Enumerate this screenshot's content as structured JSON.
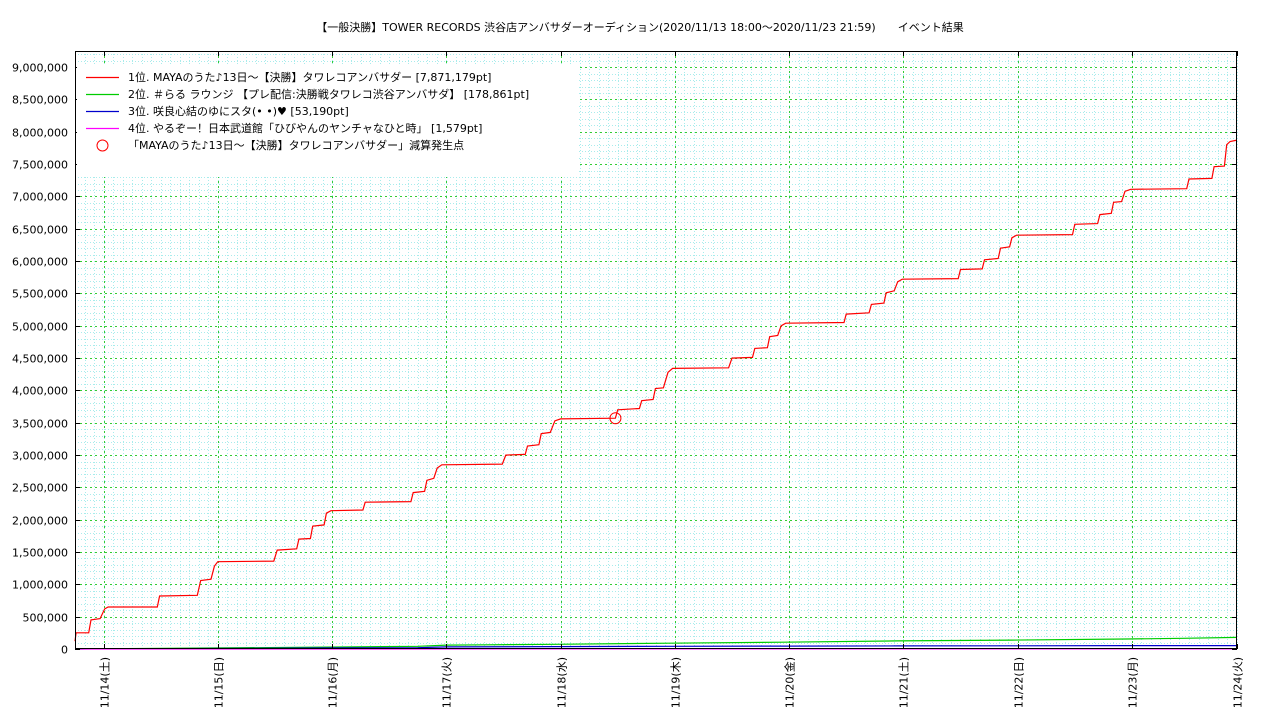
{
  "chart_data": {
    "type": "line",
    "title": "【一般決勝】TOWER RECORDS 渋谷店アンバサダーオーディション(2020/11/13 18:00〜2020/11/23 21:59)　　イベント結果",
    "xlabel": "",
    "ylabel": "",
    "x_unit": "days since 11/13 18:00",
    "xlim": [
      0,
      10.17
    ],
    "ylim": [
      0,
      9250000
    ],
    "yticks": [
      0,
      500000,
      1000000,
      1500000,
      2000000,
      2500000,
      3000000,
      3500000,
      4000000,
      4500000,
      5000000,
      5500000,
      6000000,
      6500000,
      7000000,
      7500000,
      8000000,
      8500000,
      9000000
    ],
    "ytick_labels": [
      "0",
      "500,000",
      "1,000,000",
      "1,500,000",
      "2,000,000",
      "2,500,000",
      "3,000,000",
      "3,500,000",
      "4,000,000",
      "4,500,000",
      "5,000,000",
      "5,500,000",
      "6,000,000",
      "6,500,000",
      "7,000,000",
      "7,500,000",
      "8,000,000",
      "8,500,000",
      "9,000,000"
    ],
    "xticks": [
      0.25,
      1.25,
      2.25,
      3.25,
      4.25,
      5.25,
      6.25,
      7.25,
      8.25,
      9.25,
      10.25
    ],
    "xtick_labels": [
      "11/14(土)",
      "11/15(日)",
      "11/16(月)",
      "11/17(火)",
      "11/18(水)",
      "11/19(木)",
      "11/20(金)",
      "11/21(土)",
      "11/22(日)",
      "11/23(月)",
      "11/24(火)"
    ],
    "grid": true,
    "legend_position": "top-left",
    "series": [
      {
        "name": "1位. MAYAのうた♪13日〜【決勝】タワレコアンバサダー [7,871,179pt]",
        "color": "#ff0000",
        "points": [
          [
            0,
            120000
          ],
          [
            0.01,
            250000
          ],
          [
            0.12,
            250000
          ],
          [
            0.14,
            450000
          ],
          [
            0.22,
            470000
          ],
          [
            0.26,
            620000
          ],
          [
            0.29,
            650000
          ],
          [
            0.72,
            650000
          ],
          [
            0.74,
            820000
          ],
          [
            1.07,
            830000
          ],
          [
            1.1,
            1060000
          ],
          [
            1.19,
            1080000
          ],
          [
            1.22,
            1280000
          ],
          [
            1.25,
            1350000
          ],
          [
            1.74,
            1360000
          ],
          [
            1.77,
            1530000
          ],
          [
            1.94,
            1550000
          ],
          [
            1.96,
            1700000
          ],
          [
            2.06,
            1710000
          ],
          [
            2.08,
            1900000
          ],
          [
            2.18,
            1920000
          ],
          [
            2.2,
            2100000
          ],
          [
            2.24,
            2140000
          ],
          [
            2.52,
            2150000
          ],
          [
            2.54,
            2270000
          ],
          [
            2.94,
            2280000
          ],
          [
            2.96,
            2420000
          ],
          [
            3.06,
            2440000
          ],
          [
            3.08,
            2610000
          ],
          [
            3.14,
            2640000
          ],
          [
            3.17,
            2800000
          ],
          [
            3.21,
            2850000
          ],
          [
            3.74,
            2860000
          ],
          [
            3.77,
            3000000
          ],
          [
            3.94,
            3010000
          ],
          [
            3.96,
            3140000
          ],
          [
            4.06,
            3160000
          ],
          [
            4.08,
            3330000
          ],
          [
            4.16,
            3350000
          ],
          [
            4.2,
            3530000
          ],
          [
            4.25,
            3560000
          ],
          [
            4.73,
            3570000
          ],
          [
            4.75,
            3700000
          ],
          [
            4.94,
            3720000
          ],
          [
            4.96,
            3840000
          ],
          [
            5.06,
            3860000
          ],
          [
            5.08,
            4030000
          ],
          [
            5.15,
            4040000
          ],
          [
            5.19,
            4280000
          ],
          [
            5.23,
            4340000
          ],
          [
            5.72,
            4350000
          ],
          [
            5.75,
            4500000
          ],
          [
            5.93,
            4510000
          ],
          [
            5.95,
            4650000
          ],
          [
            6.06,
            4660000
          ],
          [
            6.08,
            4830000
          ],
          [
            6.15,
            4850000
          ],
          [
            6.18,
            5000000
          ],
          [
            6.22,
            5040000
          ],
          [
            6.73,
            5050000
          ],
          [
            6.75,
            5180000
          ],
          [
            6.95,
            5200000
          ],
          [
            6.97,
            5330000
          ],
          [
            7.08,
            5350000
          ],
          [
            7.1,
            5510000
          ],
          [
            7.17,
            5540000
          ],
          [
            7.2,
            5680000
          ],
          [
            7.24,
            5720000
          ],
          [
            7.73,
            5730000
          ],
          [
            7.75,
            5870000
          ],
          [
            7.94,
            5880000
          ],
          [
            7.96,
            6020000
          ],
          [
            8.08,
            6040000
          ],
          [
            8.1,
            6200000
          ],
          [
            8.18,
            6220000
          ],
          [
            8.2,
            6360000
          ],
          [
            8.24,
            6400000
          ],
          [
            8.73,
            6410000
          ],
          [
            8.75,
            6570000
          ],
          [
            8.95,
            6580000
          ],
          [
            8.97,
            6720000
          ],
          [
            9.07,
            6740000
          ],
          [
            9.09,
            6910000
          ],
          [
            9.16,
            6920000
          ],
          [
            9.19,
            7080000
          ],
          [
            9.24,
            7110000
          ],
          [
            9.73,
            7120000
          ],
          [
            9.75,
            7270000
          ],
          [
            9.95,
            7280000
          ],
          [
            9.97,
            7460000
          ],
          [
            10.06,
            7470000
          ],
          [
            10.08,
            7800000
          ],
          [
            10.11,
            7850000
          ],
          [
            10.17,
            7871179
          ]
        ]
      },
      {
        "name": "2位. ＃らる ラウンジ 【プレ配信:決勝戦タワレコ渋谷アンバサダ】 [178,861pt]",
        "color": "#00cc00",
        "points": [
          [
            0,
            0
          ],
          [
            0.3,
            5000
          ],
          [
            1.2,
            15000
          ],
          [
            2.2,
            30000
          ],
          [
            3.0,
            42000
          ],
          [
            3.25,
            60000
          ],
          [
            3.6,
            65000
          ],
          [
            4.2,
            72000
          ],
          [
            5.2,
            90000
          ],
          [
            6.2,
            105000
          ],
          [
            7.2,
            125000
          ],
          [
            8.2,
            138000
          ],
          [
            9.2,
            155000
          ],
          [
            9.7,
            165000
          ],
          [
            10.17,
            178861
          ]
        ]
      },
      {
        "name": "3位. 咲良心結のゆにスタ(• •)♥ [53,190pt]",
        "color": "#0000cc",
        "points": [
          [
            0,
            0
          ],
          [
            0.3,
            3000
          ],
          [
            1.2,
            8000
          ],
          [
            2.2,
            15000
          ],
          [
            3.0,
            20000
          ],
          [
            3.25,
            32000
          ],
          [
            4.2,
            37000
          ],
          [
            5.2,
            41000
          ],
          [
            6.2,
            45000
          ],
          [
            7.2,
            48000
          ],
          [
            8.2,
            50000
          ],
          [
            9.2,
            52000
          ],
          [
            10.17,
            53190
          ]
        ]
      },
      {
        "name": "4位. やるぞー！日本武道館「ひびやんのヤンチャなひと時」 [1,579pt]",
        "color": "#ff00ff",
        "points": [
          [
            0,
            0
          ],
          [
            2.0,
            500
          ],
          [
            5.0,
            1000
          ],
          [
            8.0,
            1400
          ],
          [
            10.17,
            1579
          ]
        ]
      }
    ],
    "markers": [
      {
        "label": "「MAYAのうた♪13日〜【決勝】タワレコアンバサダー」減算発生点",
        "x": 4.73,
        "y": 3570000,
        "color": "#ff0000"
      }
    ]
  }
}
